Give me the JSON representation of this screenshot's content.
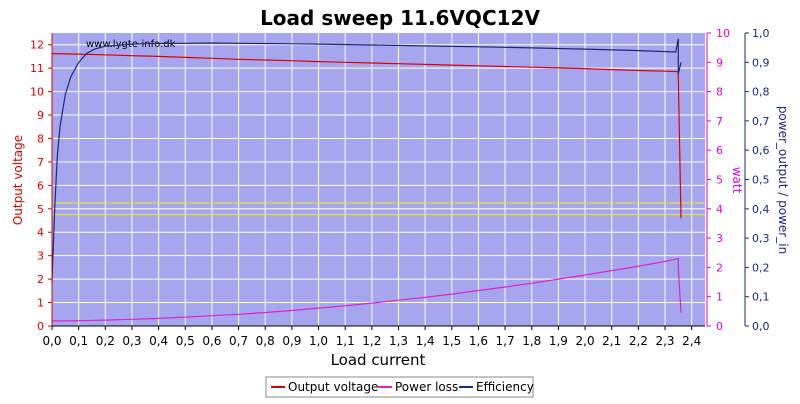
{
  "chart_data": {
    "type": "line",
    "title": "Load sweep 11.6VQC12V",
    "watermark": "www.lygte-info.dk",
    "xlabel": "Load current",
    "ylabel_left": "Output voltage",
    "ylabel_right": "watt",
    "ylabel_far_right": "power_output / power_in",
    "xlim": [
      0,
      2.45
    ],
    "ylim_left": [
      0,
      12.5
    ],
    "ylim_right": [
      0,
      10
    ],
    "ylim_far_right": [
      0,
      1.0
    ],
    "x_ticks": [
      "0,0",
      "0,1",
      "0,2",
      "0,3",
      "0,4",
      "0,5",
      "0,6",
      "0,7",
      "0,8",
      "0,9",
      "1,0",
      "1,1",
      "1,2",
      "1,3",
      "1,4",
      "1,5",
      "1,6",
      "1,7",
      "1,8",
      "1,9",
      "2,0",
      "2,1",
      "2,2",
      "2,3",
      "2,4"
    ],
    "y_left_ticks": [
      "0",
      "1",
      "2",
      "3",
      "4",
      "5",
      "6",
      "7",
      "8",
      "9",
      "10",
      "11",
      "12"
    ],
    "y_right_ticks": [
      "0",
      "1",
      "2",
      "3",
      "4",
      "5",
      "6",
      "7",
      "8",
      "9",
      "10"
    ],
    "y_far_right_ticks": [
      "0,0",
      "0,1",
      "0,2",
      "0,3",
      "0,4",
      "0,5",
      "0,6",
      "0,7",
      "0,8",
      "0,9",
      "1,0"
    ],
    "grid": true,
    "legend_position": "bottom-center",
    "reference_lines_left_axis": [
      5.25,
      4.75
    ],
    "colors": {
      "plot_bg": "#a6a6ee",
      "grid": "#ffffff",
      "output_voltage": "#dd0000",
      "power_loss": "#dd22cc",
      "efficiency": "#1a2a7a",
      "reference": "#eeee00",
      "left_axis": "#dd0000",
      "right_axis": "#dd00dd",
      "far_right_axis": "#1a2a7a"
    },
    "series": [
      {
        "name": "Output voltage",
        "axis": "left",
        "x": [
          0.0,
          0.1,
          0.2,
          0.3,
          0.4,
          0.5,
          0.6,
          0.7,
          0.8,
          0.9,
          1.0,
          1.1,
          1.2,
          1.3,
          1.4,
          1.5,
          1.6,
          1.7,
          1.8,
          1.9,
          2.0,
          2.1,
          2.2,
          2.3,
          2.35,
          2.35,
          2.36
        ],
        "values": [
          11.62,
          11.6,
          11.57,
          11.53,
          11.5,
          11.46,
          11.42,
          11.38,
          11.35,
          11.32,
          11.28,
          11.25,
          11.22,
          11.19,
          11.16,
          11.13,
          11.1,
          11.07,
          11.04,
          11.01,
          10.98,
          10.94,
          10.9,
          10.87,
          10.85,
          10.6,
          4.6
        ]
      },
      {
        "name": "Power loss",
        "axis": "right",
        "x": [
          0.0,
          0.1,
          0.2,
          0.3,
          0.4,
          0.5,
          0.6,
          0.7,
          0.8,
          0.9,
          1.0,
          1.1,
          1.2,
          1.3,
          1.4,
          1.5,
          1.6,
          1.7,
          1.8,
          1.9,
          2.0,
          2.1,
          2.2,
          2.3,
          2.35,
          2.35,
          2.36
        ],
        "values": [
          0.17,
          0.18,
          0.2,
          0.23,
          0.26,
          0.3,
          0.35,
          0.4,
          0.46,
          0.53,
          0.61,
          0.69,
          0.78,
          0.88,
          0.98,
          1.09,
          1.21,
          1.33,
          1.46,
          1.6,
          1.74,
          1.89,
          2.04,
          2.2,
          2.3,
          2.0,
          0.45
        ]
      },
      {
        "name": "Efficiency",
        "axis": "far_right",
        "x": [
          0.0,
          0.01,
          0.02,
          0.03,
          0.05,
          0.07,
          0.1,
          0.13,
          0.16,
          0.2,
          0.3,
          0.4,
          0.5,
          0.6,
          0.7,
          0.8,
          0.9,
          1.0,
          1.2,
          1.4,
          1.6,
          1.8,
          2.0,
          2.2,
          2.34,
          2.35,
          2.35,
          2.36
        ],
        "values": [
          0.15,
          0.4,
          0.58,
          0.68,
          0.79,
          0.85,
          0.9,
          0.93,
          0.945,
          0.955,
          0.962,
          0.964,
          0.965,
          0.966,
          0.965,
          0.964,
          0.963,
          0.962,
          0.959,
          0.956,
          0.953,
          0.949,
          0.945,
          0.94,
          0.935,
          0.98,
          0.86,
          0.9
        ]
      }
    ]
  }
}
